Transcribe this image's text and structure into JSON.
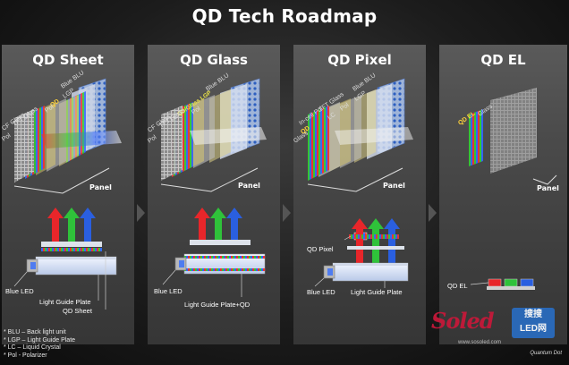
{
  "title": "QD Tech Roadmap",
  "columns": [
    {
      "heading": "QD Sheet",
      "layers": [
        "Blue BLU",
        "LGP",
        "QD",
        "Pol",
        "TFT Glass",
        "LC",
        "CF Glass",
        "Pol"
      ],
      "panel_label": "Panel",
      "callouts": [
        "Blue LED",
        "Light Guide Plate",
        "QD Sheet"
      ]
    },
    {
      "heading": "QD Glass",
      "layers": [
        "Blue BLU",
        "QD/Glass LGP",
        "Pol",
        "TFT Glass",
        "LC",
        "CF Glass",
        "Pol"
      ],
      "panel_label": "Panel",
      "callouts": [
        "Blue LED",
        "Light Guide Plate+QD"
      ]
    },
    {
      "heading": "QD Pixel",
      "layers": [
        "Blue BLU",
        "LGP",
        "Pol",
        "TFT Glass",
        "LC",
        "In-cell Pol",
        "QD",
        "Glass"
      ],
      "panel_label": "Panel",
      "callouts": [
        "QD Pixel",
        "Blue LED",
        "Light Guide Plate"
      ]
    },
    {
      "heading": "QD EL",
      "layers": [
        "Glass",
        "QD EL"
      ],
      "panel_label": "Panel",
      "callouts": [
        "QD EL"
      ]
    }
  ],
  "legend": [
    "* BLU – Back light unit",
    "* LGP – Light Guide Plate",
    "* LC – Liquid Crystal",
    "* Pol - Polarizer"
  ],
  "watermark": {
    "logo": "Soled",
    "box_line1": "搜搜",
    "box_line2": "LED网",
    "url": "www.sosoled.com",
    "brand": "Quantum Dot"
  },
  "colors": {
    "red": "#e8262a",
    "green": "#2fc23a",
    "blue": "#2a5fe0",
    "column_bg": "#4a4a4a",
    "logo_red": "#c9183a"
  }
}
